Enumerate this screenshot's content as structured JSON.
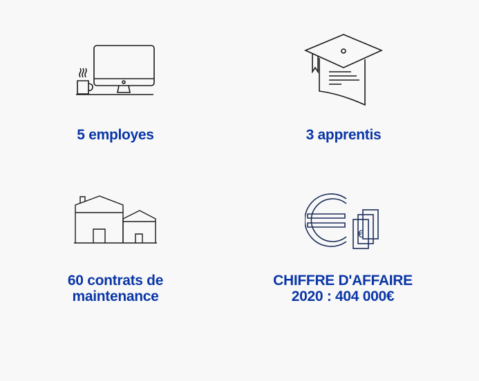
{
  "stats": [
    {
      "icon": "computer-coffee-icon",
      "label": "5 employes"
    },
    {
      "icon": "graduation-cap-diploma-icon",
      "label": "3 apprentis"
    },
    {
      "icon": "houses-icon",
      "label": "60 contrats de\nmaintenance"
    },
    {
      "icon": "euro-money-icon",
      "label": "CHIFFRE D'AFFAIRE\n2020 : 404 000€"
    }
  ],
  "colors": {
    "accent": "#0a36a6",
    "icon_stroke": "#1a1a1a",
    "euro_stroke": "#1c2d5a",
    "background": "#f8f8f8"
  }
}
